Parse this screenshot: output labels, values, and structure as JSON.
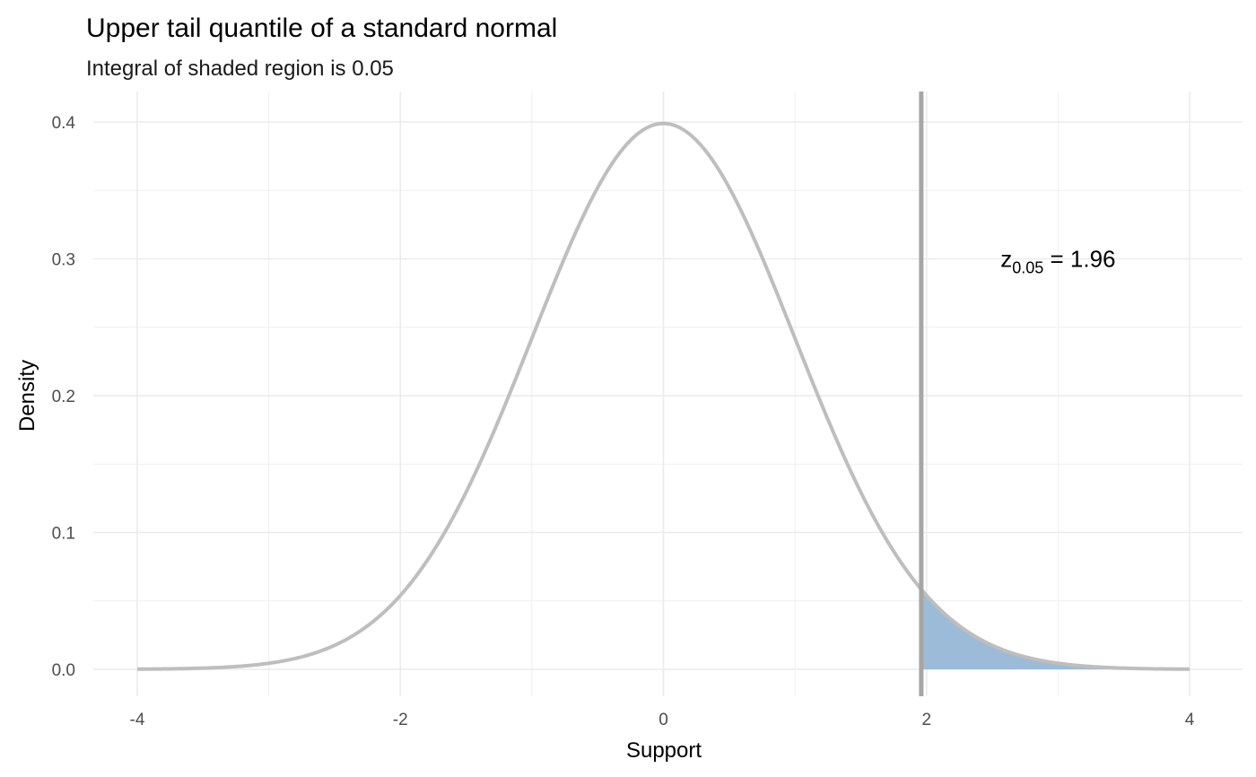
{
  "chart_data": {
    "type": "area",
    "title": "Upper tail quantile of a standard normal",
    "subtitle": "Integral of shaded region is 0.05",
    "xlabel": "Support",
    "ylabel": "Density",
    "xlim": [
      -4,
      4
    ],
    "ylim": [
      0,
      0.4
    ],
    "x_ticks": [
      "-4",
      "-2",
      "0",
      "2",
      "4"
    ],
    "y_ticks": [
      "0.0",
      "0.1",
      "0.2",
      "0.3",
      "0.4"
    ],
    "series": [
      {
        "distribution": "standard normal density",
        "x": [
          -4,
          -3.5,
          -3,
          -2.5,
          -2,
          -1.5,
          -1,
          -0.5,
          0,
          0.5,
          1,
          1.5,
          2,
          2.5,
          3,
          3.5,
          4
        ],
        "y": [
          0.0001,
          0.0009,
          0.0044,
          0.0175,
          0.054,
          0.1295,
          0.242,
          0.3521,
          0.3989,
          0.3521,
          0.242,
          0.1295,
          0.054,
          0.0175,
          0.0044,
          0.0009,
          0.0001
        ]
      }
    ],
    "shaded_region": {
      "from": 1.96,
      "to": 4,
      "area": 0.05
    },
    "vline": {
      "x": 1.96
    },
    "annotation": {
      "text_main": "z",
      "text_sub": "0.05",
      "text_eq": " = 1.96",
      "x": 3,
      "y": 0.3
    },
    "colors": {
      "curve": "#bebebe",
      "fill": "#9bbbd9",
      "vline": "#a6a6a6",
      "grid": "#ebebeb"
    },
    "grid": true,
    "legend": "none"
  }
}
